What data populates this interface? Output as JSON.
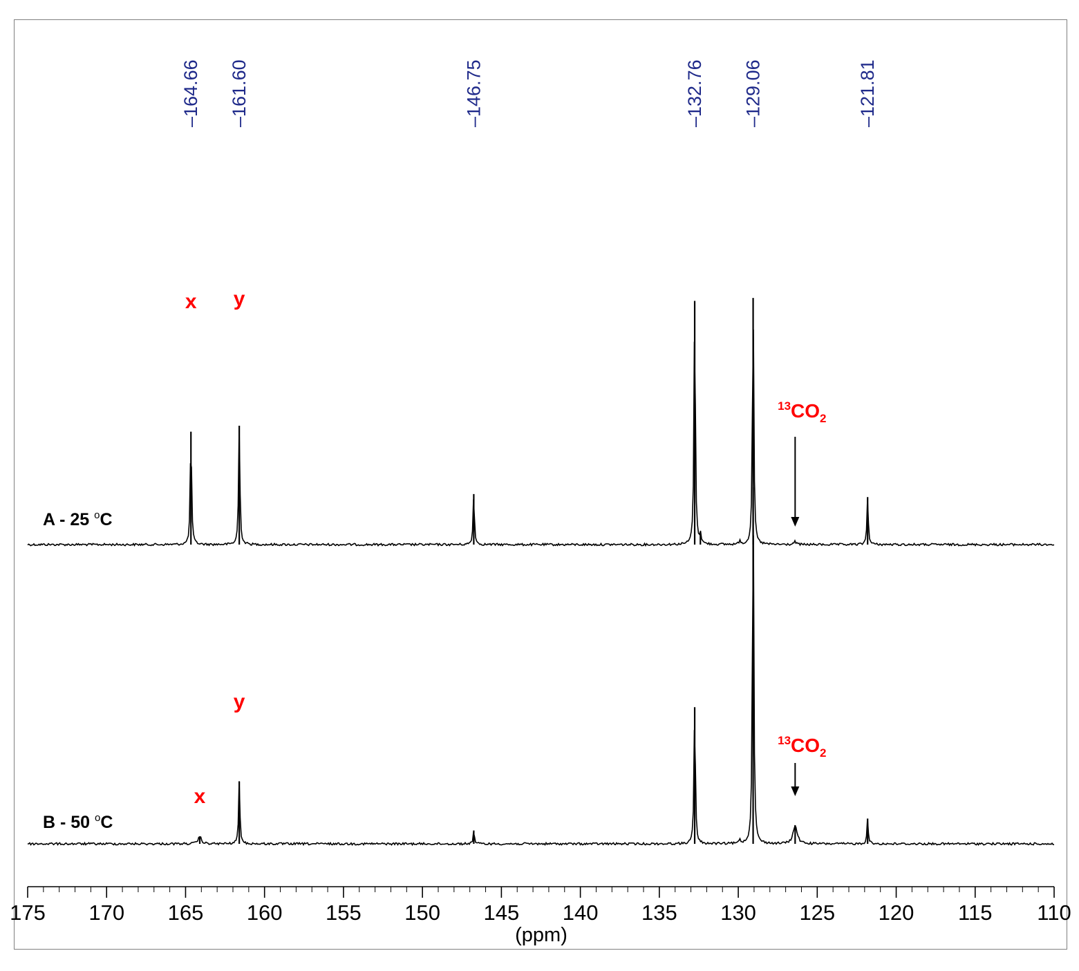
{
  "chart_data": {
    "type": "line",
    "xlabel": "(ppm)",
    "xlim": [
      175,
      110
    ],
    "x_axis_reversed": true,
    "x_ticks": [
      "175",
      "170",
      "165",
      "160",
      "155",
      "150",
      "145",
      "140",
      "135",
      "130",
      "125",
      "120",
      "115",
      "110"
    ],
    "grid": false,
    "colors": {
      "trace": "#000000",
      "peak_label": "#1f2a8a",
      "annotation": "#ff0000",
      "frame": "#7f7f7f"
    },
    "peak_labels": [
      "164.66",
      "161.60",
      "146.75",
      "132.76",
      "129.06",
      "121.81"
    ],
    "series": [
      {
        "name": "A - 25 °C",
        "label_main": "A - 25 ",
        "label_sup": "o",
        "label_end": "C",
        "peaks": [
          {
            "ppm": 164.66,
            "height": 0.38,
            "width": 0.05
          },
          {
            "ppm": 161.6,
            "height": 0.4,
            "width": 0.05
          },
          {
            "ppm": 146.75,
            "height": 0.17,
            "width": 0.05
          },
          {
            "ppm": 132.76,
            "height": 0.82,
            "width": 0.05
          },
          {
            "ppm": 132.4,
            "height": 0.035,
            "width": 0.05
          },
          {
            "ppm": 129.9,
            "height": 0.015,
            "width": 0.05
          },
          {
            "ppm": 129.06,
            "height": 0.83,
            "width": 0.05
          },
          {
            "ppm": 126.4,
            "height": 0.01,
            "width": 0.08
          },
          {
            "ppm": 121.81,
            "height": 0.16,
            "width": 0.05
          }
        ],
        "annotations": [
          {
            "text": "x",
            "ppm": 164.66
          },
          {
            "text": "y",
            "ppm": 161.6
          },
          {
            "text_sup": "13",
            "text_main": "CO",
            "text_sub": "2",
            "ppm": 126.4,
            "arrow": true
          }
        ]
      },
      {
        "name": "B - 50 °C",
        "label_main": "B - 50 ",
        "label_sup": "o",
        "label_end": "C",
        "peaks": [
          {
            "ppm": 164.1,
            "height": 0.025,
            "width": 0.12
          },
          {
            "ppm": 161.6,
            "height": 0.21,
            "width": 0.05
          },
          {
            "ppm": 146.75,
            "height": 0.045,
            "width": 0.05
          },
          {
            "ppm": 132.76,
            "height": 0.46,
            "width": 0.05
          },
          {
            "ppm": 129.9,
            "height": 0.015,
            "width": 0.05
          },
          {
            "ppm": 129.06,
            "height": 1.2,
            "width": 0.05
          },
          {
            "ppm": 126.4,
            "height": 0.063,
            "width": 0.15
          },
          {
            "ppm": 121.81,
            "height": 0.085,
            "width": 0.05
          }
        ],
        "annotations": [
          {
            "text": "x",
            "ppm": 164.1
          },
          {
            "text": "y",
            "ppm": 161.6
          },
          {
            "text_sup": "13",
            "text_main": "CO",
            "text_sub": "2",
            "ppm": 126.4,
            "arrow": true
          }
        ]
      }
    ]
  }
}
